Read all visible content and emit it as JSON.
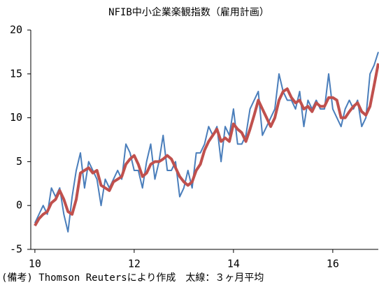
{
  "chart_data": {
    "type": "line",
    "title": "NFIB中小企業楽観指数（雇用計画）",
    "note": "(備考) Thomson Reutersにより作成　太線：３ヶ月平均",
    "x": [
      10,
      10.083,
      10.167,
      10.25,
      10.333,
      10.417,
      10.5,
      10.583,
      10.667,
      10.75,
      10.833,
      10.917,
      11,
      11.083,
      11.167,
      11.25,
      11.333,
      11.417,
      11.5,
      11.583,
      11.667,
      11.75,
      11.833,
      11.917,
      12,
      12.083,
      12.167,
      12.25,
      12.333,
      12.417,
      12.5,
      12.583,
      12.667,
      12.75,
      12.833,
      12.917,
      13,
      13.083,
      13.167,
      13.25,
      13.333,
      13.417,
      13.5,
      13.583,
      13.667,
      13.75,
      13.833,
      13.917,
      14,
      14.083,
      14.167,
      14.25,
      14.333,
      14.417,
      14.5,
      14.583,
      14.667,
      14.75,
      14.833,
      14.917,
      15,
      15.083,
      15.167,
      15.25,
      15.333,
      15.417,
      15.5,
      15.583,
      15.667,
      15.75,
      15.833,
      15.917,
      16,
      16.083,
      16.167,
      16.25,
      16.333,
      16.417,
      16.5,
      16.583,
      16.667,
      16.75,
      16.833,
      16.917
    ],
    "series": [
      {
        "color": "#4a7ebb",
        "width": 2,
        "values": [
          -2,
          -1,
          0,
          -1,
          2,
          1,
          2,
          -1,
          -3,
          1,
          4,
          6,
          2,
          5,
          4,
          3,
          0,
          3,
          2,
          3,
          4,
          3,
          7,
          6,
          4,
          4,
          2,
          5,
          7,
          3,
          5,
          8,
          4,
          4,
          5,
          1,
          2,
          4,
          2,
          6,
          6,
          7,
          9,
          8,
          9,
          5,
          9,
          8,
          11,
          7,
          7,
          8,
          11,
          12,
          13,
          8,
          9,
          10,
          11,
          15,
          13,
          12,
          12,
          11,
          13,
          9,
          12,
          11,
          12,
          11,
          11,
          15,
          11,
          10,
          9,
          11,
          12,
          11,
          12,
          9,
          10,
          15,
          16,
          17.5
        ]
      },
      {
        "color": "#c0504d",
        "width": 4,
        "values": [
          -2.3,
          -1.5,
          -1,
          -0.7,
          0.3,
          0.7,
          1.7,
          0.7,
          -0.7,
          -1,
          0.7,
          3.7,
          4,
          4.3,
          3.7,
          4,
          2.3,
          2,
          1.7,
          2.7,
          3,
          3.3,
          4.7,
          5.3,
          5.7,
          4.7,
          3.3,
          3.7,
          4.7,
          5,
          5,
          5.3,
          5.7,
          5.3,
          4.3,
          3.3,
          2.7,
          2.3,
          2.7,
          4,
          4.7,
          6.3,
          7.3,
          8,
          8.7,
          7.3,
          7.7,
          7.3,
          9.3,
          8.7,
          8.3,
          7.3,
          8.7,
          10.3,
          12,
          11,
          10,
          9,
          10,
          12,
          13,
          13.3,
          12.3,
          11.7,
          12,
          11,
          11.3,
          10.7,
          11.7,
          11.3,
          11.3,
          12.3,
          12.3,
          12,
          10,
          10,
          10.7,
          11.3,
          11.7,
          10.7,
          10.3,
          11.3,
          13.7,
          16.2
        ]
      }
    ],
    "xlim": [
      9.917,
      16.917
    ],
    "xticks": [
      10,
      12,
      14,
      16
    ],
    "ylim": [
      -5,
      20
    ],
    "yticks": [
      -5,
      0,
      5,
      10,
      15,
      20
    ],
    "grid": false
  }
}
